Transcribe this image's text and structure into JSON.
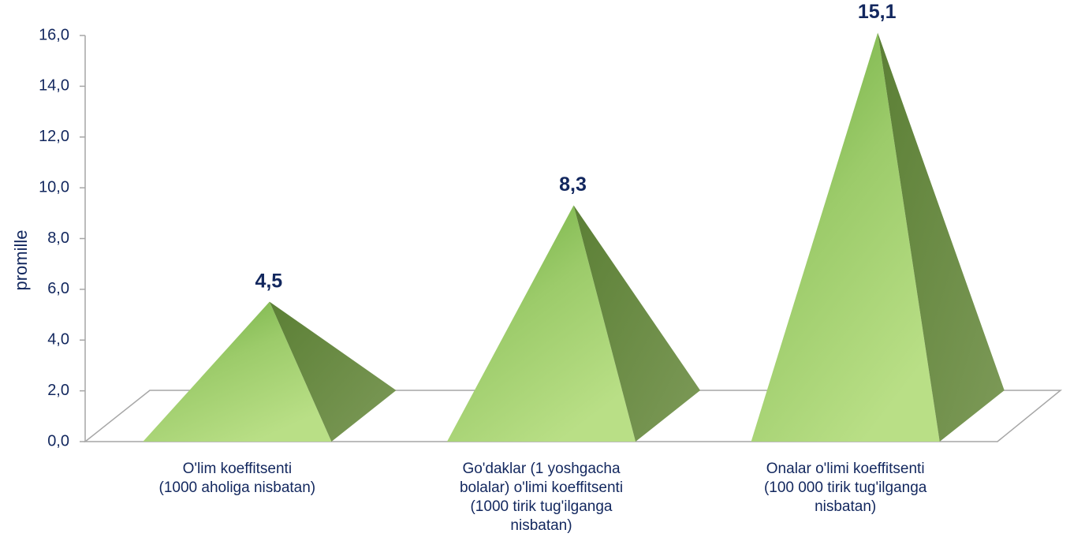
{
  "chart_data": {
    "type": "pyramid3d",
    "ylabel": "promille",
    "categories": [
      [
        "O'lim koeffitsenti",
        "(1000 aholiga nisbatan)"
      ],
      [
        "Go'daklar (1 yoshgacha",
        "bolalar) o'limi koeffitsenti",
        "(1000 tirik tug'ilganga",
        "nisbatan)"
      ],
      [
        "Onalar o'limi koeffitsenti",
        "(100 000 tirik tug'ilganga",
        "nisbatan)"
      ]
    ],
    "values": [
      4.5,
      8.3,
      15.1
    ],
    "value_labels": [
      "4,5",
      "8,3",
      "15,1"
    ],
    "color": "#8cc152",
    "ylim": [
      0,
      16
    ],
    "yticks": [
      {
        "value": 0,
        "label": "0,0"
      },
      {
        "value": 2,
        "label": "2,0"
      },
      {
        "value": 4,
        "label": "4,0"
      },
      {
        "value": 6,
        "label": "6,0"
      },
      {
        "value": 8,
        "label": "8,0"
      },
      {
        "value": 10,
        "label": "10,0"
      },
      {
        "value": 12,
        "label": "12,0"
      },
      {
        "value": 14,
        "label": "14,0"
      },
      {
        "value": 16,
        "label": "16,0"
      }
    ]
  }
}
